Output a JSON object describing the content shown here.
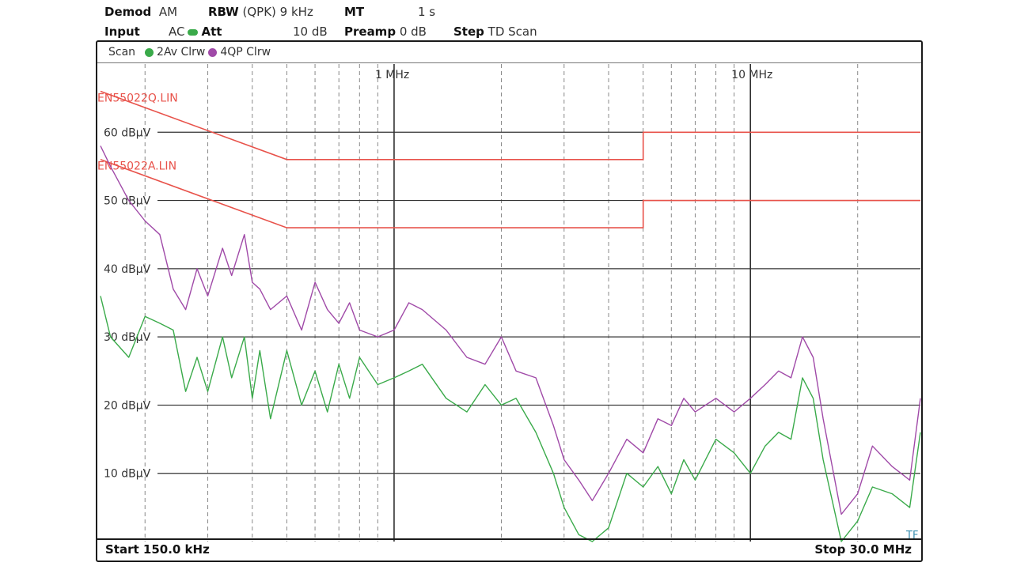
{
  "header": {
    "demod_label": "Demod",
    "demod_value": "AM",
    "rbw_label": "RBW",
    "rbw_value": "(QPK) 9 kHz",
    "mt_label": "MT",
    "mt_value": "1 s",
    "input_label": "Input",
    "input_value": "AC",
    "att_label": "Att",
    "att_value": "10 dB",
    "preamp_label": "Preamp",
    "preamp_value": "0 dB",
    "step_label": "Step",
    "step_value": "TD Scan"
  },
  "scanbar": {
    "scan_label": "Scan",
    "trace2_label": "2Av Clrw",
    "trace4_label": "4QP Clrw"
  },
  "footer": {
    "start_label": "Start 150.0 kHz",
    "stop_label": "Stop 30.0 MHz"
  },
  "corner_label": "TF",
  "colors": {
    "limit": "#e8524a",
    "trace_av": "#3aaa4a",
    "trace_qp": "#a04aa8",
    "grid": "#333333"
  },
  "chart_data": {
    "type": "line",
    "x_scale": "log",
    "xlim_mhz": [
      0.15,
      30
    ],
    "ylim_dbuv": [
      0,
      70
    ],
    "x_tick_labels": [
      {
        "mhz": 1,
        "label": "1 MHz"
      },
      {
        "mhz": 10,
        "label": "10 MHz"
      }
    ],
    "y_tick_labels": [
      "10 dBµV",
      "20 dBµV",
      "30 dBµV",
      "40 dBµV",
      "50 dBµV",
      "60 dBµV"
    ],
    "y_ticks": [
      10,
      20,
      30,
      40,
      50,
      60
    ],
    "grid": true,
    "limit_lines": [
      {
        "name": "EN55022Q.LIN",
        "label_y": 64.5,
        "x": [
          0.15,
          0.5,
          0.5,
          5,
          5,
          30
        ],
        "y": [
          66,
          56,
          56,
          56,
          60,
          60
        ]
      },
      {
        "name": "EN55022A.LIN",
        "label_y": 54.5,
        "x": [
          0.15,
          0.5,
          0.5,
          5,
          5,
          30
        ],
        "y": [
          56,
          46,
          46,
          46,
          50,
          50
        ]
      }
    ],
    "series": [
      {
        "name": "4QP Clrw",
        "x": [
          0.15,
          0.16,
          0.18,
          0.2,
          0.22,
          0.24,
          0.26,
          0.28,
          0.3,
          0.33,
          0.35,
          0.38,
          0.4,
          0.42,
          0.45,
          0.5,
          0.55,
          0.6,
          0.65,
          0.7,
          0.75,
          0.8,
          0.9,
          1.0,
          1.1,
          1.2,
          1.4,
          1.6,
          1.8,
          2.0,
          2.2,
          2.5,
          2.8,
          3.0,
          3.3,
          3.6,
          4.0,
          4.5,
          5.0,
          5.5,
          6.0,
          6.5,
          7.0,
          8.0,
          9.0,
          10.0,
          11.0,
          12.0,
          13.0,
          14.0,
          15.0,
          16.0,
          18.0,
          20.0,
          22.0,
          25.0,
          28.0,
          30.0
        ],
        "y": [
          58,
          55,
          50,
          47,
          45,
          37,
          34,
          40,
          36,
          43,
          39,
          45,
          38,
          37,
          34,
          36,
          31,
          38,
          34,
          32,
          35,
          31,
          30,
          31,
          35,
          34,
          31,
          27,
          26,
          30,
          25,
          24,
          17,
          12,
          9,
          6,
          10,
          15,
          13,
          18,
          17,
          21,
          19,
          21,
          19,
          21,
          23,
          25,
          24,
          30,
          27,
          18,
          4,
          7,
          14,
          11,
          9,
          21
        ]
      },
      {
        "name": "2Av Clrw",
        "x": [
          0.15,
          0.16,
          0.18,
          0.2,
          0.22,
          0.24,
          0.26,
          0.28,
          0.3,
          0.33,
          0.35,
          0.38,
          0.4,
          0.42,
          0.45,
          0.5,
          0.55,
          0.6,
          0.65,
          0.7,
          0.75,
          0.8,
          0.9,
          1.0,
          1.1,
          1.2,
          1.4,
          1.6,
          1.8,
          2.0,
          2.2,
          2.5,
          2.8,
          3.0,
          3.3,
          3.6,
          4.0,
          4.5,
          5.0,
          5.5,
          6.0,
          6.5,
          7.0,
          8.0,
          9.0,
          10.0,
          11.0,
          12.0,
          13.0,
          14.0,
          15.0,
          16.0,
          18.0,
          20.0,
          22.0,
          25.0,
          28.0,
          30.0
        ],
        "y": [
          36,
          30,
          27,
          33,
          32,
          31,
          22,
          27,
          22,
          30,
          24,
          30,
          21,
          28,
          18,
          28,
          20,
          25,
          19,
          26,
          21,
          27,
          23,
          24,
          25,
          26,
          21,
          19,
          23,
          20,
          21,
          16,
          10,
          5,
          1,
          0,
          2,
          10,
          8,
          11,
          7,
          12,
          9,
          15,
          13,
          10,
          14,
          16,
          15,
          24,
          21,
          12,
          0,
          3,
          8,
          7,
          5,
          16
        ]
      }
    ]
  }
}
